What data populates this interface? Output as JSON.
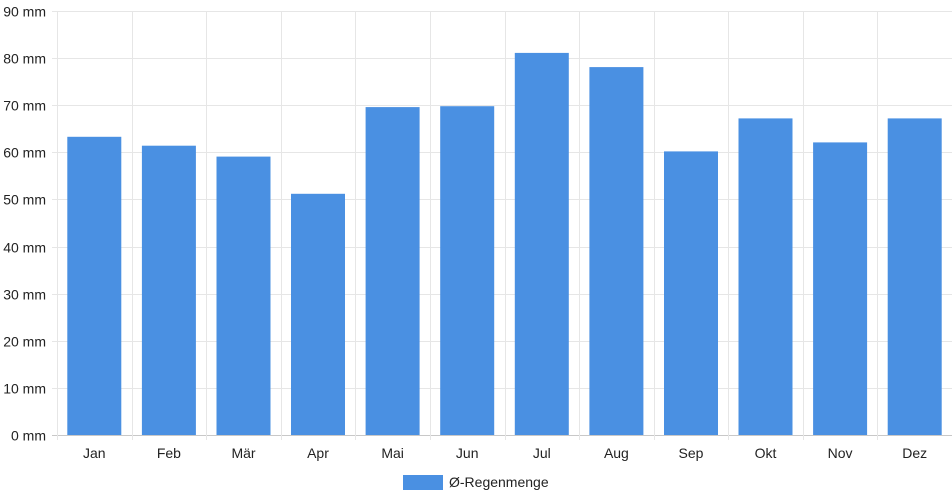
{
  "chart_data": {
    "type": "bar",
    "categories": [
      "Jan",
      "Feb",
      "Mär",
      "Apr",
      "Mai",
      "Jun",
      "Jul",
      "Aug",
      "Sep",
      "Okt",
      "Nov",
      "Dez"
    ],
    "series": [
      {
        "name": "Ø-Regenmenge",
        "values": [
          63.3,
          61.4,
          59.1,
          51.2,
          69.6,
          69.8,
          81.1,
          78.1,
          60.2,
          67.2,
          62.1,
          67.2
        ],
        "color": "#4a90e2"
      }
    ],
    "y_ticks": [
      "0 mm",
      "10 mm",
      "20 mm",
      "30 mm",
      "40 mm",
      "50 mm",
      "60 mm",
      "70 mm",
      "80 mm",
      "90 mm"
    ],
    "ylim": [
      0,
      90
    ],
    "grid": true,
    "legend": "bottom-center"
  }
}
